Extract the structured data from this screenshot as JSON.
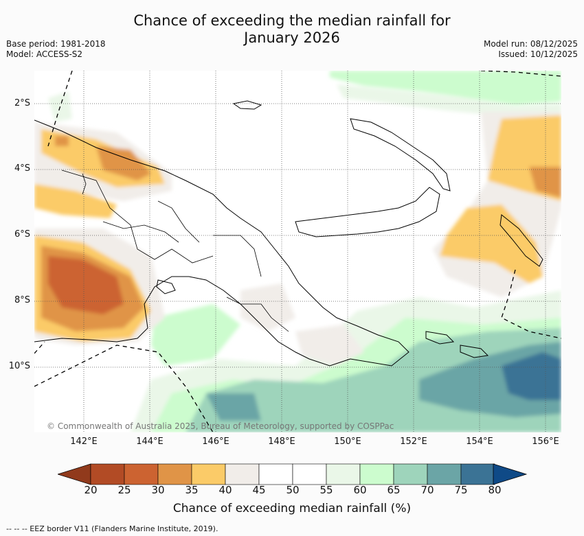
{
  "title": {
    "line1": "Chance of exceeding the median rainfall for",
    "line2": "January 2026"
  },
  "meta": {
    "base_period": "Base period: 1981-2018",
    "model": "Model: ACCESS-S2",
    "model_run": "Model run: 08/12/2025",
    "issued": "Issued: 10/12/2025"
  },
  "map": {
    "lat_labels": [
      "2°S",
      "4°S",
      "6°S",
      "8°S",
      "10°S"
    ],
    "lon_labels": [
      "142°E",
      "144°E",
      "146°E",
      "148°E",
      "150°E",
      "152°E",
      "154°E",
      "156°E"
    ],
    "copyright": "© Commonwealth of Australia 2025, Bureau of Meteorology, supported by COSPPac"
  },
  "colorbar": {
    "ticks": [
      "20",
      "25",
      "30",
      "35",
      "40",
      "45",
      "50",
      "55",
      "60",
      "65",
      "70",
      "75",
      "80"
    ],
    "colors": [
      "#b24b25",
      "#cc6331",
      "#e09447",
      "#fbcb68",
      "#f1ede9",
      "#ffffff",
      "#ffffff",
      "#eaf7e8",
      "#ccfcce",
      "#9ed4bb",
      "#6ba5a6",
      "#3b7395"
    ],
    "under_color": "#913a1c",
    "over_color": "#0f4a87",
    "label": "Chance of exceeding median rainfall (%)"
  },
  "legend": {
    "eez": "-- -- -- EEZ border V11 (Flanders Marine Institute, 2019)."
  }
}
